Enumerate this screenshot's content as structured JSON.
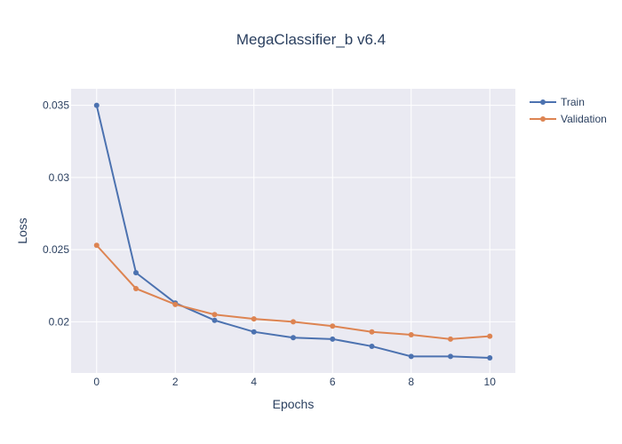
{
  "chart_data": {
    "type": "line",
    "title": "MegaClassifier_b v6.4",
    "xlabel": "Epochs",
    "ylabel": "Loss",
    "x": [
      0,
      1,
      2,
      3,
      4,
      5,
      6,
      7,
      8,
      9,
      10
    ],
    "xlim": [
      -0.65,
      10.65
    ],
    "ylim": [
      0.01645,
      0.03615
    ],
    "xticks": [
      0,
      2,
      4,
      6,
      8,
      10
    ],
    "xtick_labels": [
      "0",
      "2",
      "4",
      "6",
      "8",
      "10"
    ],
    "yticks": [
      0.02,
      0.025,
      0.03,
      0.035
    ],
    "ytick_labels": [
      "0.02",
      "0.025",
      "0.03",
      "0.035"
    ],
    "grid": true,
    "legend_position": "top-right",
    "series": [
      {
        "name": "Train",
        "color": "#4c72b0",
        "values": [
          0.035,
          0.0234,
          0.0213,
          0.0201,
          0.0193,
          0.0189,
          0.0188,
          0.0183,
          0.0176,
          0.0176,
          0.0175
        ]
      },
      {
        "name": "Validation",
        "color": "#dd8452",
        "values": [
          0.0253,
          0.0223,
          0.0212,
          0.0205,
          0.0202,
          0.02,
          0.0197,
          0.0193,
          0.0191,
          0.0188,
          0.019
        ]
      }
    ]
  }
}
